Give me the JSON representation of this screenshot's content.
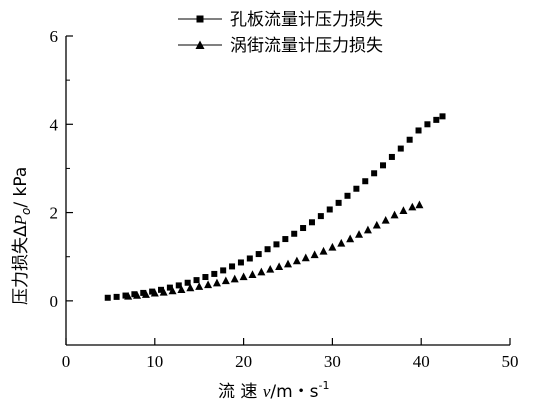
{
  "chart_data": {
    "type": "scatter",
    "xlabel": {
      "main": "流 速 ",
      "var": "v",
      "unit": "/m・s",
      "sup": "-1"
    },
    "ylabel": {
      "main": "压力损失Δ",
      "var": "P",
      "sub": "o",
      "unit": "/ kPa"
    },
    "xlim": [
      0,
      50
    ],
    "ylim": [
      -1,
      6
    ],
    "xticks": [
      0,
      10,
      20,
      30,
      40,
      50
    ],
    "yticks": [
      0,
      2,
      4,
      6
    ],
    "grid": false,
    "legend_position": "top-center",
    "series": [
      {
        "name": "孔板流量计压力损失",
        "marker": "square",
        "x": [
          4.7,
          5.7,
          6.7,
          7.7,
          8.7,
          9.7,
          10.7,
          11.7,
          12.7,
          13.7,
          14.7,
          15.7,
          16.7,
          17.7,
          18.7,
          19.7,
          20.7,
          21.7,
          22.7,
          23.7,
          24.7,
          25.7,
          26.7,
          27.7,
          28.7,
          29.7,
          30.7,
          31.7,
          32.7,
          33.7,
          34.7,
          35.7,
          36.7,
          37.7,
          38.7,
          39.7,
          40.7,
          41.7,
          42.4
        ],
        "y": [
          0.07,
          0.09,
          0.12,
          0.15,
          0.18,
          0.21,
          0.25,
          0.3,
          0.35,
          0.41,
          0.47,
          0.54,
          0.61,
          0.69,
          0.78,
          0.87,
          0.96,
          1.06,
          1.17,
          1.28,
          1.4,
          1.52,
          1.65,
          1.78,
          1.92,
          2.07,
          2.22,
          2.38,
          2.54,
          2.71,
          2.89,
          3.07,
          3.26,
          3.45,
          3.65,
          3.86,
          4.0,
          4.1,
          4.18
        ]
      },
      {
        "name": "涡街流量计压力损失",
        "marker": "triangle",
        "x": [
          7.0,
          8.0,
          9.0,
          10.0,
          11.0,
          12.0,
          13.0,
          14.0,
          15.0,
          16.0,
          17.0,
          18.0,
          19.0,
          20.0,
          21.0,
          22.0,
          23.0,
          24.0,
          25.0,
          26.0,
          27.0,
          28.0,
          29.0,
          30.0,
          31.0,
          32.0,
          33.0,
          34.0,
          35.0,
          36.0,
          37.0,
          38.0,
          39.0,
          39.8
        ],
        "y": [
          0.11,
          0.13,
          0.15,
          0.18,
          0.2,
          0.23,
          0.26,
          0.3,
          0.33,
          0.37,
          0.41,
          0.46,
          0.5,
          0.55,
          0.6,
          0.66,
          0.72,
          0.78,
          0.84,
          0.91,
          0.98,
          1.05,
          1.13,
          1.22,
          1.31,
          1.41,
          1.51,
          1.61,
          1.72,
          1.83,
          1.95,
          2.05,
          2.13,
          2.18
        ]
      }
    ]
  },
  "colors": {
    "ink": "#000000",
    "background": "#ffffff"
  }
}
